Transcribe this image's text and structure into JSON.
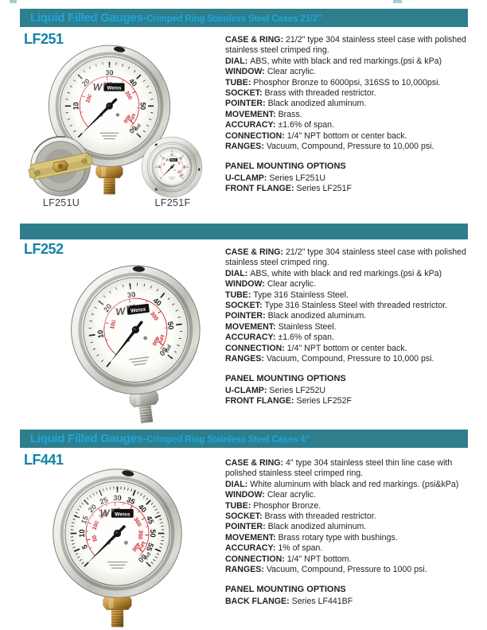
{
  "banners": [
    {
      "title": "Liquid Filled Gauges-",
      "subtitle": "Crimped Ring Stainless Steel Cases 21/2\""
    },
    {
      "title": "Liquid Filled Gauges-",
      "subtitle": "Crimped Ring Stainless Steel Cases 4\""
    }
  ],
  "sections": [
    {
      "model": "LF251",
      "specs": [
        {
          "label": "CASE & RING:",
          "text": "21/2\" type 304 stainless steel case with polished stainless steel crimped ring."
        },
        {
          "label": "DIAL:",
          "text": "ABS, white with black and red markings.(psi & kPa)"
        },
        {
          "label": "WINDOW:",
          "text": "Clear acrylic."
        },
        {
          "label": "TUBE:",
          "text": "Phosphor Bronze to 6000psi, 316SS to 10,000psi."
        },
        {
          "label": "SOCKET:",
          "text": "Brass with threaded restrictor."
        },
        {
          "label": "POINTER:",
          "text": "Black anodized aluminum."
        },
        {
          "label": "MOVEMENT:",
          "text": "Brass."
        },
        {
          "label": "ACCURACY:",
          "text": "±1.6% of span."
        },
        {
          "label": "CONNECTION:",
          "text": "1/4\" NPT bottom or center back."
        },
        {
          "label": "RANGES:",
          "text": "Vacuum, Compound, Pressure to 10,000 psi."
        }
      ],
      "mounting_heading": "PANEL MOUNTING OPTIONS",
      "mounting": [
        {
          "label": "U-CLAMP:",
          "text": "Series LF251U"
        },
        {
          "label": "FRONT FLANGE:",
          "text": "Series LF251F"
        }
      ],
      "photo_captions": [
        "LF251U",
        "LF251F"
      ]
    },
    {
      "model": "LF252",
      "specs": [
        {
          "label": "CASE & RING:",
          "text": "21/2\" type 304 stainless steel case with polished stainless steel crimped ring."
        },
        {
          "label": "DIAL:",
          "text": "ABS, white with black and red markings.(psi & kPa)"
        },
        {
          "label": "WINDOW:",
          "text": "Clear acrylic."
        },
        {
          "label": "TUBE:",
          "text": "Type 316 Stainless Steel."
        },
        {
          "label": "SOCKET:",
          "text": "Type 316 Stainless Steel with threaded restrictor."
        },
        {
          "label": "POINTER:",
          "text": "Black anodized aluminum."
        },
        {
          "label": "MOVEMENT:",
          "text": "Stainless Steel."
        },
        {
          "label": "ACCURACY:",
          "text": "±1.6% of span."
        },
        {
          "label": "CONNECTION:",
          "text": "1/4\" NPT bottom or center back."
        },
        {
          "label": "RANGES:",
          "text": "Vacuum, Compound, Pressure to 10,000 psi."
        }
      ],
      "mounting_heading": "PANEL MOUNTING OPTIONS",
      "mounting": [
        {
          "label": "U-CLAMP:",
          "text": "Series LF252U"
        },
        {
          "label": "FRONT FLANGE:",
          "text": "Series LF252F"
        }
      ],
      "photo_captions": []
    },
    {
      "model": "LF441",
      "specs": [
        {
          "label": "CASE & RING:",
          "text": "4\" type 304 stainless steel thin line case with polished stainless steel crimped ring."
        },
        {
          "label": "DIAL:",
          "text": "White aluminum with black and red markings. (psi&kPa)"
        },
        {
          "label": "WINDOW:",
          "text": "Clear acrylic."
        },
        {
          "label": "TUBE:",
          "text": "Phosphor Bronze."
        },
        {
          "label": "SOCKET:",
          "text": "Brass with threaded restrictor."
        },
        {
          "label": "POINTER:",
          "text": "Black anodized aluminum."
        },
        {
          "label": "MOVEMENT:",
          "text": "Brass rotary type with bushings."
        },
        {
          "label": "ACCURACY:",
          "text": "1% of span."
        },
        {
          "label": "CONNECTION:",
          "text": "1/4\" NPT bottom."
        },
        {
          "label": "RANGES:",
          "text": "Vacuum, Compound, Pressure to 1000 psi."
        }
      ],
      "mounting_heading": "PANEL MOUNTING OPTIONS",
      "mounting": [
        {
          "label": "BACK FLANGE:",
          "text": "Series LF441BF"
        }
      ],
      "photo_captions": []
    }
  ],
  "gauges": {
    "lf251": {
      "brand": "Weiss",
      "psi_max": 60,
      "psi_major": 10,
      "psi_labels": [
        10,
        20,
        30,
        40,
        50,
        60
      ],
      "kpa_labels": [
        100,
        200,
        300,
        400
      ],
      "kpa_full": 414,
      "unit_red": "kPa",
      "unit_black": "psi",
      "fitting": "brass",
      "needle_t": 0
    },
    "lf252": {
      "brand": "Weiss",
      "psi_max": 60,
      "psi_major": 10,
      "psi_labels": [
        10,
        20,
        30,
        40,
        50,
        60
      ],
      "kpa_labels": [
        100,
        200,
        300,
        400
      ],
      "kpa_full": 414,
      "unit_red": "kPa",
      "unit_black": "psi",
      "fitting": "steel",
      "needle_t": 0
    },
    "lf441": {
      "brand": "Weiss",
      "psi_max": 60,
      "psi_major": 5,
      "psi_labels": [
        5,
        10,
        15,
        20,
        25,
        30,
        35,
        40,
        45,
        50,
        55,
        60
      ],
      "kpa_labels": [
        50,
        100,
        150,
        200,
        250,
        300,
        350,
        400
      ],
      "kpa_full": 414,
      "unit_red": "kPa",
      "unit_black": "psi",
      "fitting": "brass",
      "needle_t": 0
    },
    "lf251f": {
      "brand": "Weiss",
      "psi_max": 60,
      "psi_major": 10,
      "psi_labels": [
        10,
        20,
        30,
        40,
        50,
        60
      ],
      "kpa_labels": [
        100,
        200,
        300,
        400
      ],
      "kpa_full": 414,
      "unit_red": "kPa",
      "unit_black": "psi",
      "flange": true,
      "needle_t": 0
    }
  },
  "colors": {
    "banner_bg": "#2e7e8e",
    "banner_text": "#1da6da",
    "model_title": "#1482a8",
    "spec_text": "#231f20",
    "scale_red": "#cc2229"
  }
}
